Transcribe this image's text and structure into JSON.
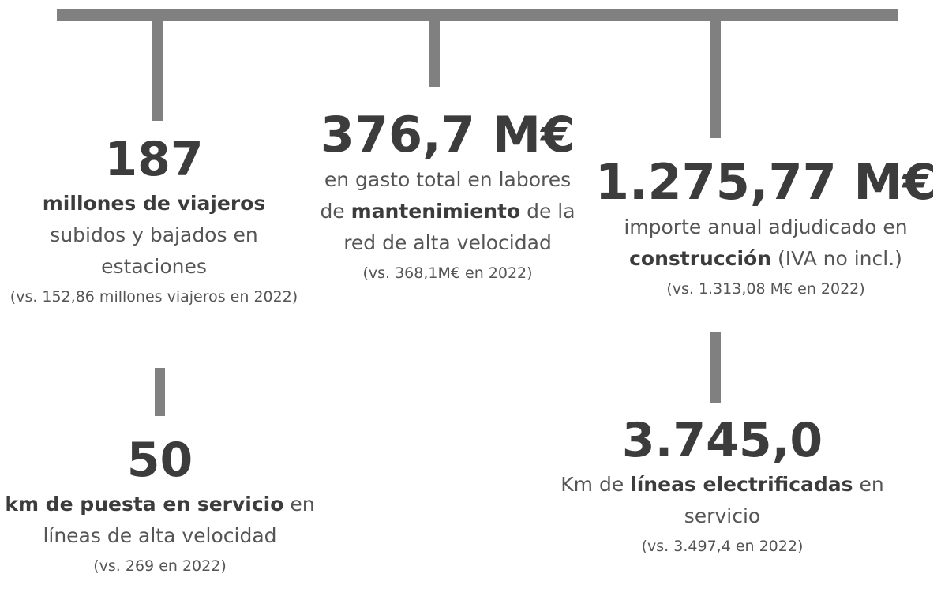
{
  "items": [
    {
      "number": "187",
      "description": [
        {
          "text": "millones de viajeros",
          "bold": true
        },
        {
          "text": "subidos y bajados en estaciones"
        }
      ],
      "comparison": "(vs. 152,86 millones viajeros en 2022)"
    },
    {
      "number": "376,7 M€",
      "description": [
        {
          "text": "en gasto total en labores de"
        },
        {
          "text": "mantenimiento",
          "bold": true
        },
        {
          "text": "de la red de alta velocidad"
        }
      ],
      "comparison": "(vs. 368,1M€ en 2022)"
    },
    {
      "number": "1.275,77 M€",
      "description": [
        {
          "text": "importe anual adjudicado en"
        },
        {
          "text": "construcción",
          "bold": true
        },
        {
          "text": "(IVA no incl.)"
        }
      ],
      "comparison": "(vs. 1.313,08 M€ en 2022)"
    },
    {
      "number": "3.745,0",
      "description": [
        {
          "text": "Km de"
        },
        {
          "text": "líneas electrificadas",
          "bold": true
        },
        {
          "text": "en servicio"
        }
      ],
      "comparison": "(vs. 3.497,4 en 2022)"
    },
    {
      "number": "50",
      "description": [
        {
          "text": "km de puesta en servicio",
          "bold": true
        },
        {
          "text": "en líneas de alta velocidad"
        }
      ],
      "comparison": "(vs. 269 en 2022)"
    }
  ]
}
